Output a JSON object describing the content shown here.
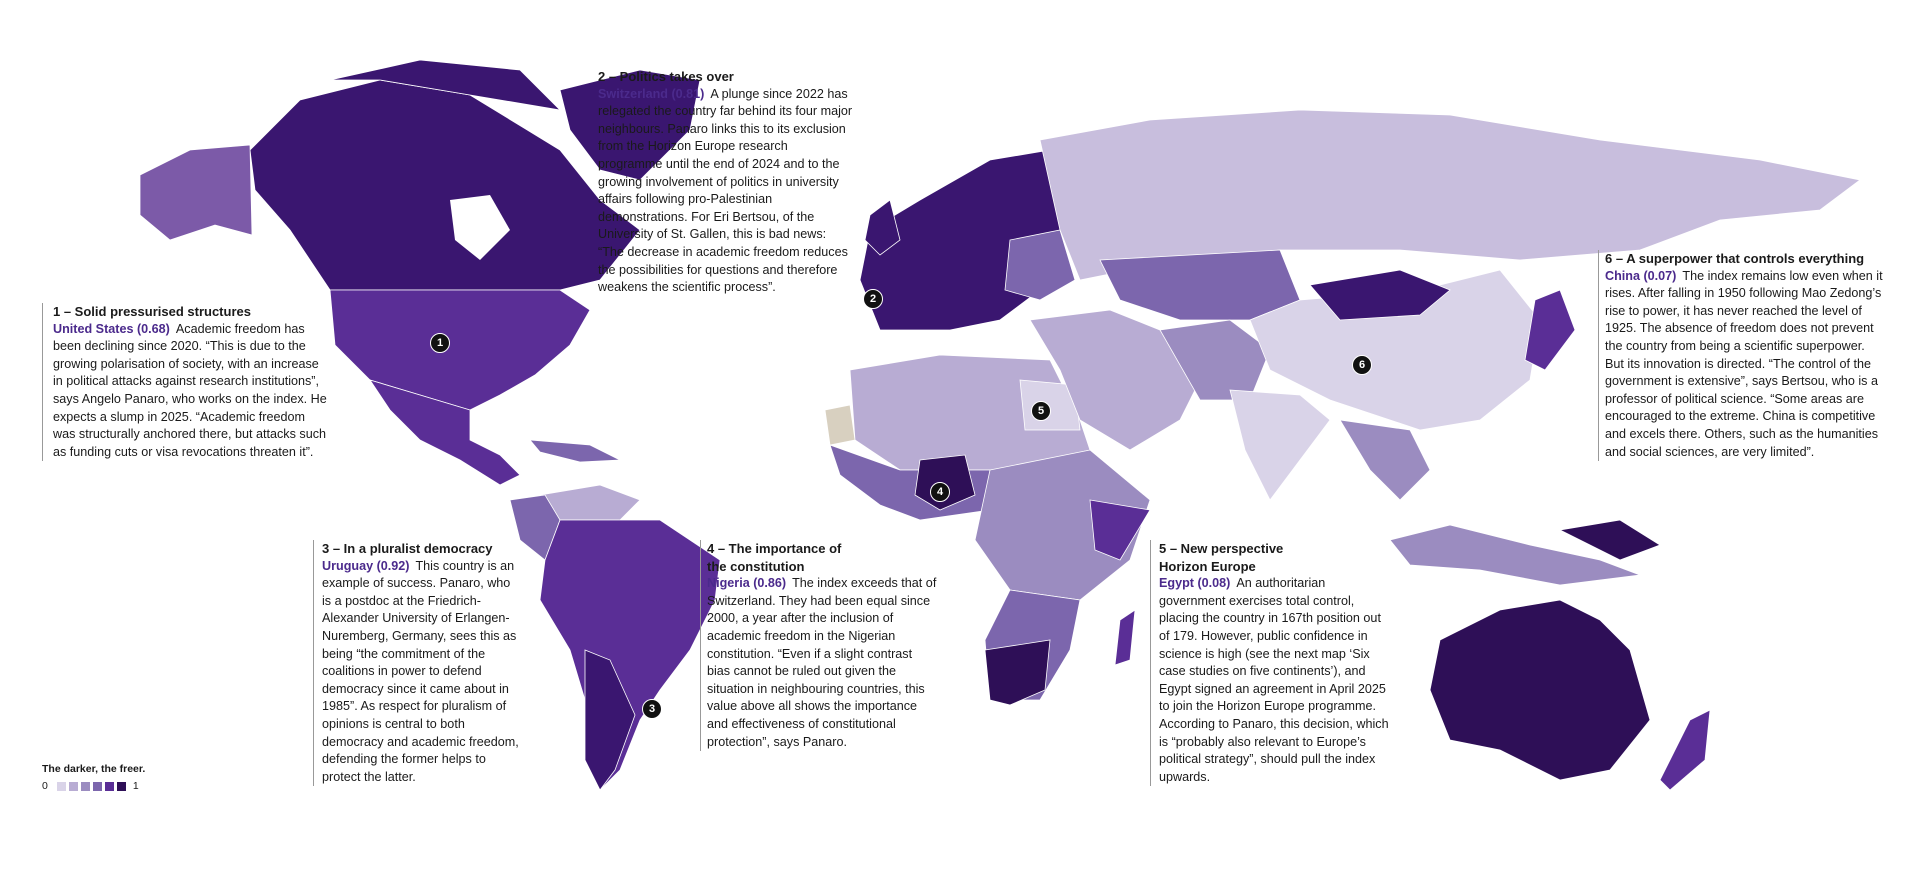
{
  "legend": {
    "title": "The darker, the freer.",
    "min_label": "0",
    "max_label": "1",
    "scale_colors": [
      "#d9d3e8",
      "#b8acd3",
      "#9b8cc0",
      "#7c66ad",
      "#5a2e96",
      "#2e0f57"
    ]
  },
  "markers": [
    "1",
    "2",
    "3",
    "4",
    "5",
    "6"
  ],
  "stories": [
    {
      "heading": "1 – Solid pressurised structures",
      "country": "United States (0.68)",
      "text": "Academic freedom has been declining since 2020. “This is due to the growing polarisation of society, with an increase in political attacks against research institutions”, says Angelo Panaro, who works on the index. He expects a slump in 2025. “Academic freedom was structurally anchored there, but attacks such as funding cuts or visa revocations threaten it”."
    },
    {
      "heading": "2 – Politics takes over",
      "country": "Switzerland (0.81)",
      "text": "A plunge since 2022 has relegated the country far behind its four major neighbours. Panaro links this to its exclusion from the Horizon Europe research programme until the end of 2024 and to the growing involvement of politics in university affairs following pro-Palestinian demonstrations. For Eri Bertsou, of the University of St. Gallen, this is bad news: “The decrease in academic freedom reduces the possibilities for questions and therefore weakens the scientific process”."
    },
    {
      "heading": "3 – In a pluralist democracy",
      "country": "Uruguay (0.92)",
      "text": "This country is an example of success. Panaro, who is a postdoc at the Friedrich-Alexander University of Erlangen-Nuremberg, Germany, sees this as being “the commitment of the coalitions in power to defend democracy since it came about in 1985”. As respect for pluralism of opinions is central to both democracy and academic freedom, defending the former helps to protect the latter."
    },
    {
      "heading": "4 – The importance of the constitution",
      "country": "Nigeria (0.86)",
      "text": "The index exceeds that of Switzerland. They had been equal since 2000, a year after the inclusion of academic freedom in the Nigerian constitution. “Even if a slight contrast bias cannot be ruled out given the situation in neighbouring countries, this value above all shows the importance and effectiveness of constitutional protection”, says Panaro."
    },
    {
      "heading": "5 – New perspective Horizon Europe",
      "country": "Egypt (0.08)",
      "text": "An authoritarian government exercises total control, placing the country in 167th position out of 179. However, public confidence in science is high (see the next map ‘Six case studies on five continents’), and Egypt signed an agreement in April 2025 to join the Horizon Europe programme. According to Panaro, this decision, which is “probably also relevant to Europe’s political strategy”, should pull the index upwards."
    },
    {
      "heading": "6 – A superpower that controls everything",
      "country": "China (0.07)",
      "text": "The index remains low even when it rises. After falling in 1950 following Mao Zedong’s rise to power, it has never reached the level of 1925. The absence of freedom does not prevent the country from being a scientific superpower. But its innovation is directed. “The control of the government is extensive”, says Bertsou, who is a professor of political science. “Some areas are encouraged to the extreme. China is competitive and excels there. Others, such as the humanities and social sciences, are very limited”."
    }
  ]
}
